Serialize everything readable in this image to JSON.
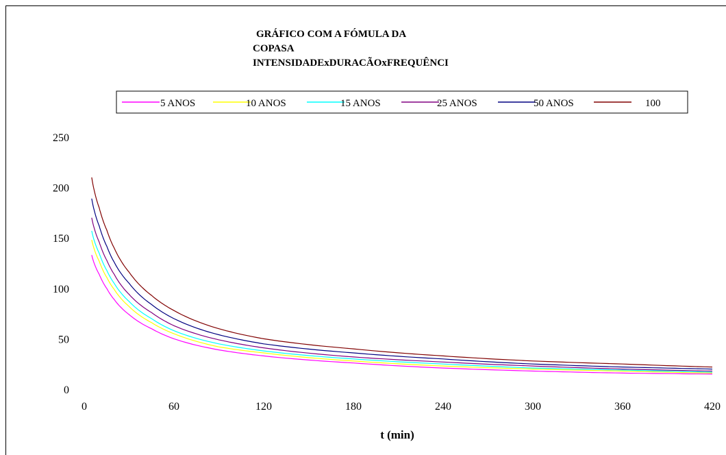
{
  "chart_data": {
    "type": "line",
    "title_lines": [
      "GRÁFICO  COM A FÓMULA  DA",
      "COPASA",
      "INTENSIDADExDURACÃOxFREQUÊNCI"
    ],
    "xlabel": "t (min)",
    "ylabel": "",
    "xlim": [
      0,
      420
    ],
    "ylim": [
      0,
      250
    ],
    "x_ticks": [
      "0",
      "60",
      "120",
      "180",
      "240",
      "300",
      "360",
      "420"
    ],
    "y_ticks": [
      "0",
      "50",
      "100",
      "150",
      "200",
      "250"
    ],
    "grid": false,
    "legend_position": "top",
    "x": [
      5,
      10,
      15,
      20,
      30,
      45,
      60,
      90,
      120,
      180,
      240,
      300,
      360,
      420
    ],
    "series": [
      {
        "name": "5 ANOS",
        "color": "#ff00ff",
        "values": [
          133,
          114,
          100,
          89,
          74,
          60,
          50,
          39,
          33,
          26,
          21,
          18,
          16,
          15
        ]
      },
      {
        "name": "10 ANOS",
        "color": "#ffff00",
        "values": [
          148,
          127,
          111,
          99,
          82,
          66,
          55,
          42,
          36,
          28,
          23,
          20,
          18,
          16
        ]
      },
      {
        "name": "15 ANOS",
        "color": "#00ffff",
        "values": [
          157,
          135,
          118,
          105,
          87,
          70,
          58,
          45,
          38,
          30,
          25,
          21,
          19,
          17
        ]
      },
      {
        "name": "25 ANOS",
        "color": "#800080",
        "values": [
          170,
          146,
          128,
          114,
          94,
          76,
          63,
          49,
          41,
          32,
          27,
          23,
          20,
          18
        ]
      },
      {
        "name": "50 ANOS",
        "color": "#000080",
        "values": [
          189,
          162,
          142,
          126,
          105,
          84,
          70,
          54,
          45,
          36,
          30,
          25,
          22,
          20
        ]
      },
      {
        "name": "100",
        "color": "#800000",
        "values": [
          210,
          180,
          158,
          140,
          116,
          93,
          78,
          60,
          50,
          40,
          33,
          28,
          25,
          22
        ]
      }
    ]
  }
}
